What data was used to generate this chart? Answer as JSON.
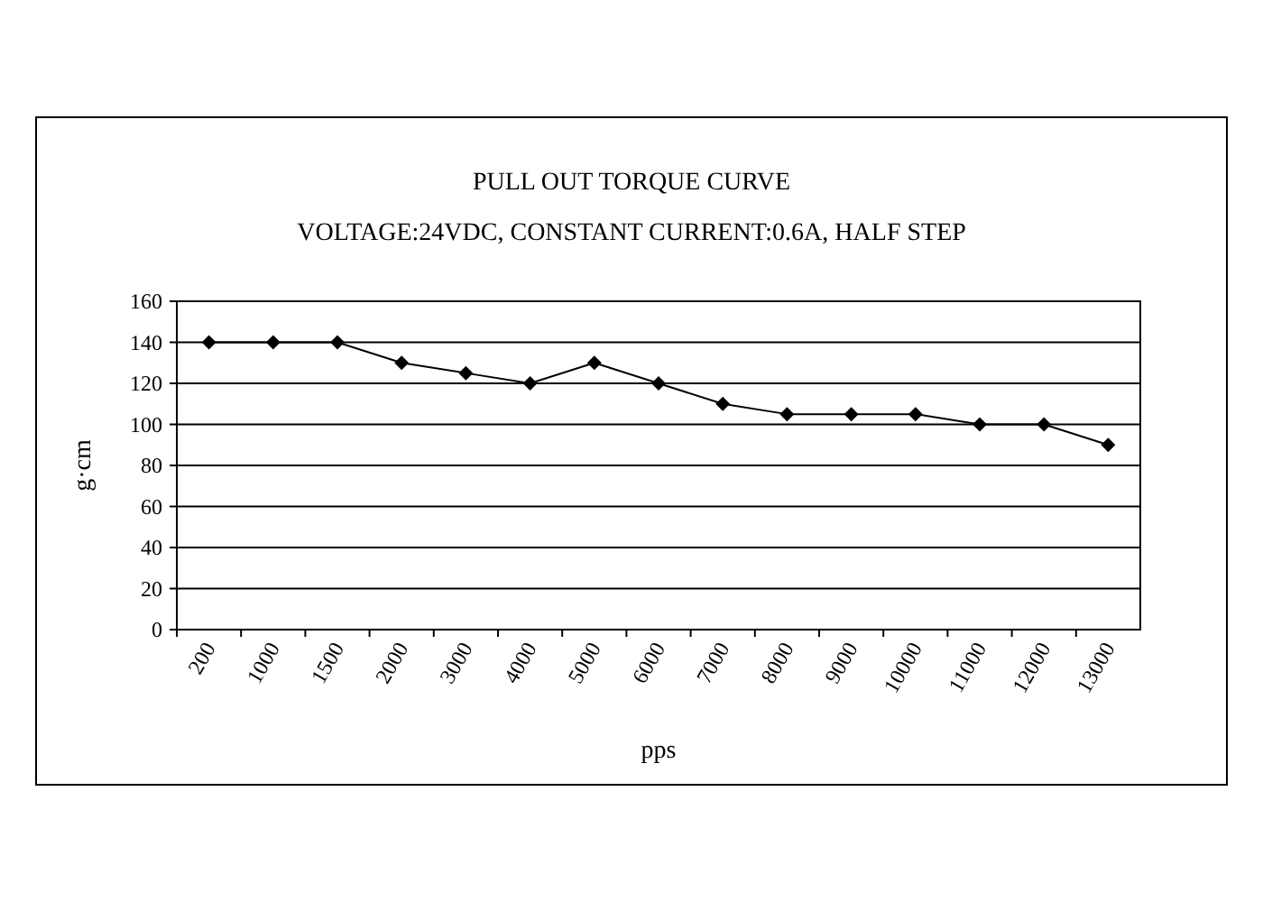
{
  "chart_data": {
    "type": "line",
    "title": "PULL OUT TORQUE CURVE",
    "subtitle": "VOLTAGE:24VDC, CONSTANT CURRENT:0.6A, HALF STEP",
    "xlabel": "pps",
    "ylabel": "g·cm",
    "categories": [
      "200",
      "1000",
      "1500",
      "2000",
      "3000",
      "4000",
      "5000",
      "6000",
      "7000",
      "8000",
      "9000",
      "10000",
      "11000",
      "12000",
      "13000"
    ],
    "series": [
      {
        "color": "#000000",
        "values": [
          140,
          140,
          140,
          130,
          125,
          120,
          130,
          120,
          110,
          105,
          105,
          105,
          100,
          100,
          90
        ]
      }
    ],
    "ylim": [
      0,
      160
    ],
    "yticks": [
      0,
      20,
      40,
      60,
      80,
      100,
      120,
      140,
      160
    ],
    "grid": "y",
    "marker": "diamond",
    "line_style": "solid"
  }
}
